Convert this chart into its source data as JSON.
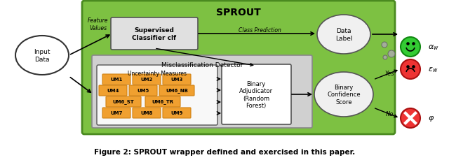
{
  "title": "Figure 2: SPROUT wrapper defined and exercised in this paper.",
  "sprout_label": "SPROUT",
  "sprout_bg": "#7DC142",
  "misclass_label": "Misclassification Detector",
  "misclass_bg": "#C8C8C8",
  "um_box_bg": "#F5F5F5",
  "um_label": "Uncertainty Measures",
  "um_items": [
    "UM1",
    "UM2",
    "UM3",
    "UM4",
    "UM5",
    "UM6_NB",
    "UM6_ST",
    "UM6_TR",
    "UM7",
    "UM8",
    "UM9"
  ],
  "um_button_bg": "#F0A030",
  "um_button_edge": "#D08010",
  "adjudicator_label": "Binary\nAdjudicator\n(Random\nForest)",
  "adjudicator_bg": "#FFFFFF",
  "input_label": "Input\nData",
  "classifier_label": "Supervised\nClassifier clf",
  "classifier_bg": "#E0E0E0",
  "data_label_text": "Data\nLabel",
  "binary_conf_label": "Binary\nConfidence\nScore",
  "feature_values_label": "Feature\nValues",
  "class_prediction_label": "Class Prediction",
  "yes_label": "Yes",
  "no_label": "No",
  "alpha_label": "α_w",
  "epsilon_label": "ε_w",
  "phi_label": "φ",
  "arrow_color": "#000000",
  "text_color": "#000000",
  "fig_bg": "#FFFFFF"
}
